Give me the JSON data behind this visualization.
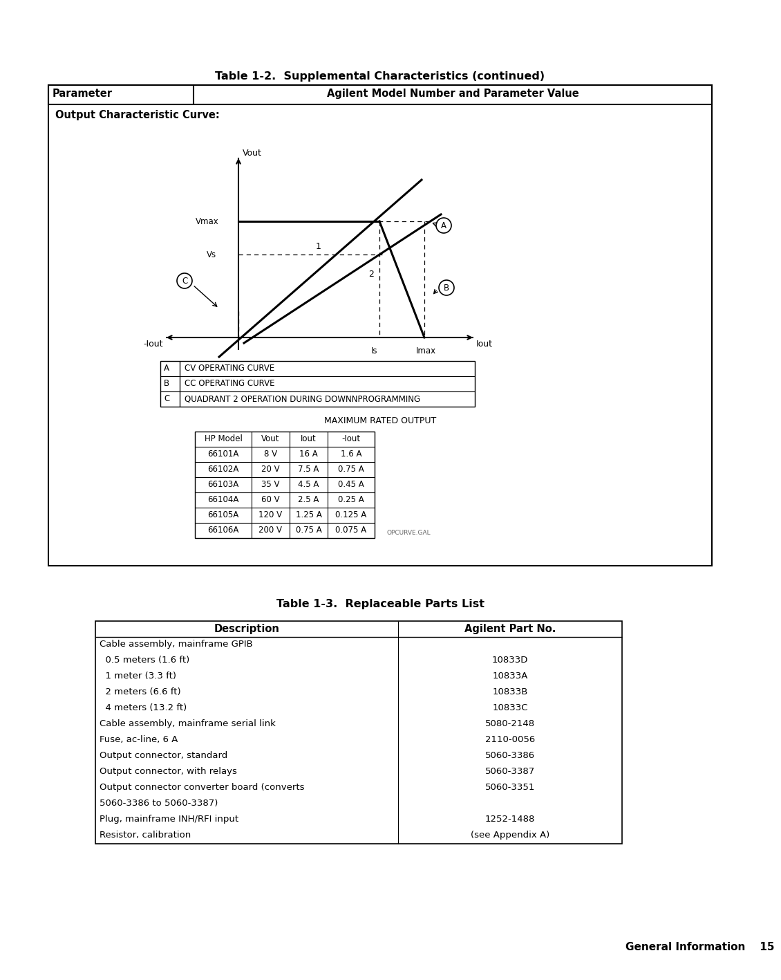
{
  "page_title": "Table 1-2.  Supplemental Characteristics (continued)",
  "table1_header_col1": "Parameter",
  "table1_header_col2": "Agilent Model Number and Parameter Value",
  "section_label": "Output Characteristic Curve:",
  "legend_rows": [
    [
      "A",
      "CV OPERATING CURVE"
    ],
    [
      "B",
      "CC OPERATING CURVE"
    ],
    [
      "C",
      "QUADRANT 2 OPERATION DURING DOWNNPROGRAMMING"
    ]
  ],
  "max_rated_title": "MAXIMUM RATED OUTPUT",
  "max_rated_headers": [
    "HP Model",
    "Vout",
    "Iout",
    "-Iout"
  ],
  "max_rated_rows": [
    [
      "66101A",
      "8 V",
      "16 A",
      "1.6 A"
    ],
    [
      "66102A",
      "20 V",
      "7.5 A",
      "0.75 A"
    ],
    [
      "66103A",
      "35 V",
      "4.5 A",
      "0.45 A"
    ],
    [
      "66104A",
      "60 V",
      "2.5 A",
      "0.25 A"
    ],
    [
      "66105A",
      "120 V",
      "1.25 A",
      "0.125 A"
    ],
    [
      "66106A",
      "200 V",
      "0.75 A",
      "0.075 A"
    ]
  ],
  "watermark": "OPCURVE.GAL",
  "table2_title": "Table 1-3.  Replaceable Parts List",
  "table2_header_col1": "Description",
  "table2_header_col2": "Agilent Part No.",
  "table2_rows": [
    [
      "Cable assembly, mainframe GPIB",
      ""
    ],
    [
      "  0.5 meters (1.6 ft)",
      "10833D"
    ],
    [
      "  1 meter (3.3 ft)",
      "10833A"
    ],
    [
      "  2 meters (6.6 ft)",
      "10833B"
    ],
    [
      "  4 meters (13.2 ft)",
      "10833C"
    ],
    [
      "Cable assembly, mainframe serial link",
      "5080-2148"
    ],
    [
      "Fuse, ac-line, 6 A",
      "2110-0056"
    ],
    [
      "Output connector, standard",
      "5060-3386"
    ],
    [
      "Output connector, with relays",
      "5060-3387"
    ],
    [
      "Output connector converter board (converts",
      "5060-3351"
    ],
    [
      "5060-3386 to 5060-3387)",
      ""
    ],
    [
      "Plug, mainframe INH/RFI input",
      "1252-1488"
    ],
    [
      "Resistor, calibration",
      "(see Appendix A)"
    ]
  ],
  "footer": "General Information    15",
  "bg_color": "#ffffff",
  "text_color": "#000000",
  "watermark_color": "#666666",
  "border_color": "#000000"
}
